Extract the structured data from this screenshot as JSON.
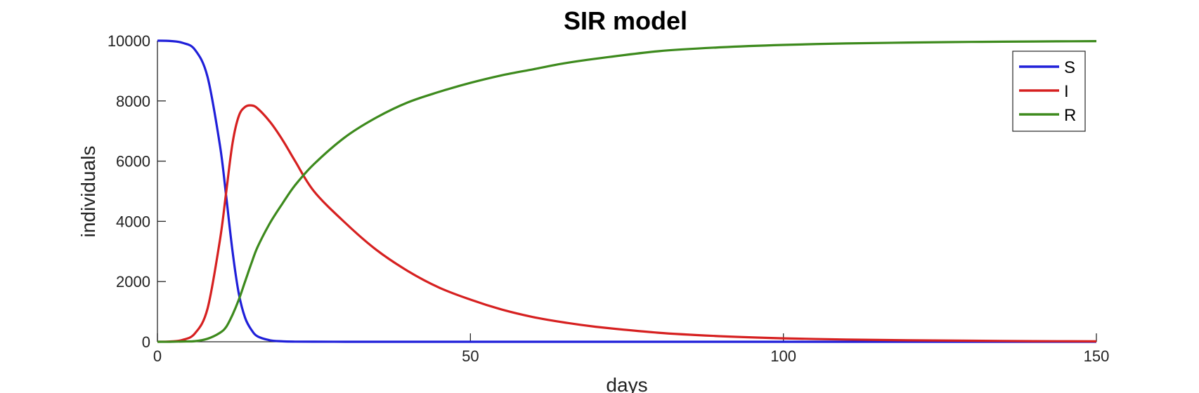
{
  "chart_data": {
    "type": "line",
    "title": "SIR model",
    "xlabel": "days",
    "ylabel": "individuals",
    "xlim": [
      0,
      150
    ],
    "ylim": [
      0,
      10000
    ],
    "xticks": [
      0,
      50,
      100,
      150
    ],
    "yticks": [
      0,
      2000,
      4000,
      6000,
      8000,
      10000
    ],
    "grid": false,
    "legend_position": "top-right",
    "x": [
      0,
      2,
      4,
      6,
      8,
      10,
      11,
      12,
      13,
      14,
      15,
      16,
      18,
      20,
      22,
      25,
      30,
      35,
      40,
      45,
      50,
      55,
      60,
      65,
      70,
      80,
      90,
      100,
      110,
      120,
      130,
      140,
      150
    ],
    "series": [
      {
        "name": "S",
        "color": "#1f1fd9",
        "values": [
          10000,
          9990,
          9930,
          9700,
          8800,
          6500,
          4800,
          3000,
          1600,
          800,
          400,
          180,
          50,
          15,
          5,
          2,
          1,
          1,
          0,
          0,
          0,
          0,
          0,
          0,
          0,
          0,
          0,
          0,
          0,
          0,
          0,
          0,
          0
        ]
      },
      {
        "name": "I",
        "color": "#d62020",
        "values": [
          1,
          10,
          60,
          280,
          1100,
          3400,
          5000,
          6600,
          7500,
          7800,
          7850,
          7750,
          7300,
          6700,
          6000,
          5000,
          3950,
          3050,
          2350,
          1800,
          1400,
          1070,
          820,
          640,
          500,
          300,
          185,
          115,
          75,
          50,
          35,
          22,
          15
        ]
      },
      {
        "name": "R",
        "color": "#3d8a1d",
        "values": [
          0,
          0,
          10,
          20,
          100,
          300,
          500,
          900,
          1400,
          2000,
          2600,
          3150,
          3950,
          4600,
          5200,
          5900,
          6800,
          7450,
          7950,
          8300,
          8600,
          8850,
          9050,
          9250,
          9400,
          9650,
          9780,
          9860,
          9910,
          9940,
          9960,
          9975,
          9985
        ]
      }
    ]
  }
}
